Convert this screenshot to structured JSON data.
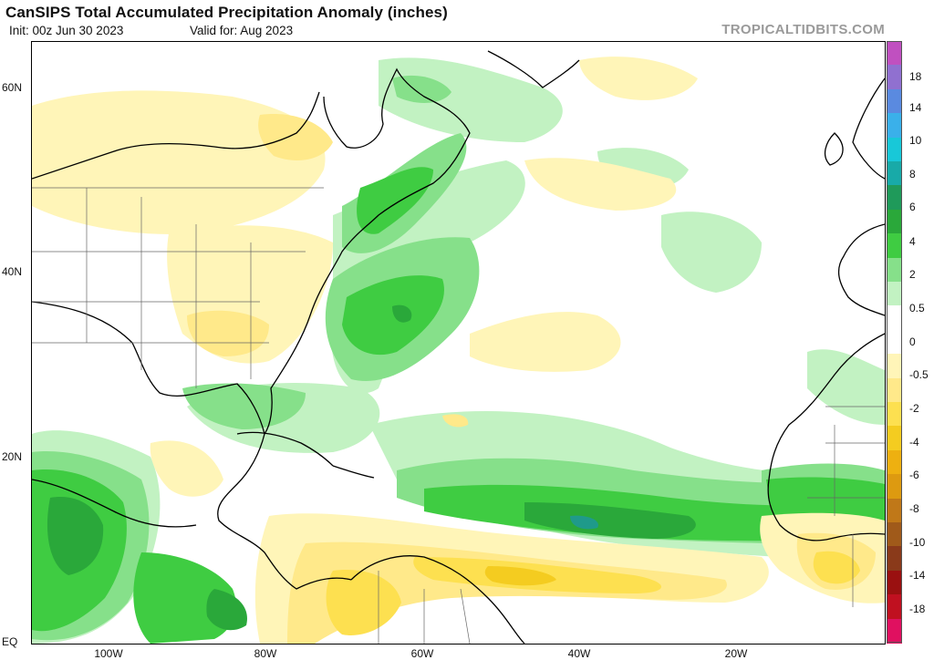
{
  "header": {
    "title": "CanSIPS Total Accumulated Precipitation Anomaly (inches)",
    "init": "Init: 00z Jun 30 2023",
    "valid": "Valid for: Aug 2023",
    "brand": "TROPICALTIDBITS.COM"
  },
  "map": {
    "lat_labels": [
      "60N",
      "40N",
      "20N",
      "EQ"
    ],
    "lon_labels": [
      "100W",
      "80W",
      "60W",
      "40W",
      "20W"
    ]
  },
  "colorbar": {
    "labels": [
      "18",
      "14",
      "10",
      "8",
      "6",
      "4",
      "2",
      "0.5",
      "0",
      "-0.5",
      "-2",
      "-4",
      "-6",
      "-8",
      "-10",
      "-14",
      "-18"
    ],
    "colors": [
      "#c050c0",
      "#9070d0",
      "#5a8ae0",
      "#3ab0ea",
      "#18c8d8",
      "#18aaa8",
      "#1f9a5a",
      "#2aa83a",
      "#3fcc42",
      "#86e08a",
      "#c2f2c2",
      "#ffffff",
      "#ffffff",
      "#fff5b8",
      "#ffe98a",
      "#fde050",
      "#f4cc20",
      "#eeb010",
      "#dd9a10",
      "#c07818",
      "#a05a1a",
      "#8a3a1a",
      "#9a1010",
      "#c01020",
      "#e01060"
    ]
  }
}
